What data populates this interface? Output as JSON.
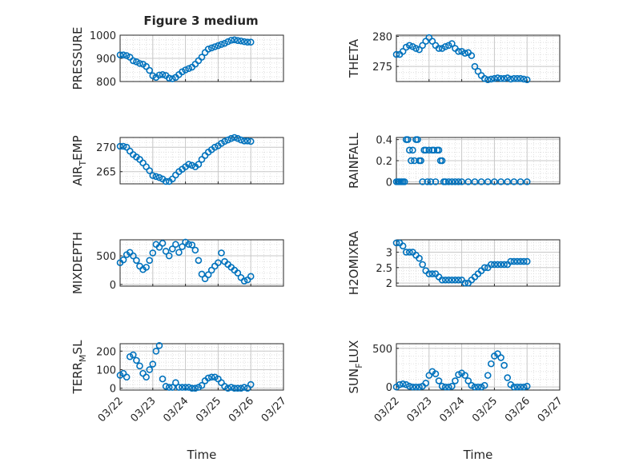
{
  "figure_title": "Figure 3 medium",
  "style": {
    "marker_color": "#0072BD",
    "axis_color": "#262626",
    "grid_color": "#d9d9d9"
  },
  "chart_data": [
    {
      "type": "scatter",
      "ylabel": "PRESSURE",
      "ylabel_sub": "",
      "ylabel_tail": "",
      "xlim": [
        "03/22",
        "03/27"
      ],
      "xticks": [
        "03/22",
        "03/23",
        "03/24",
        "03/25",
        "03/26",
        "03/27"
      ],
      "ylim": [
        800,
        1000
      ],
      "yticks": [
        800,
        900,
        1000
      ],
      "grid": true,
      "xlabel": "",
      "x": [
        0.0,
        0.1,
        0.2,
        0.3,
        0.4,
        0.5,
        0.6,
        0.7,
        0.8,
        0.9,
        1.0,
        1.1,
        1.2,
        1.3,
        1.4,
        1.5,
        1.6,
        1.7,
        1.8,
        1.9,
        2.0,
        2.1,
        2.2,
        2.3,
        2.4,
        2.5,
        2.6,
        2.7,
        2.8,
        2.9,
        3.0,
        3.1,
        3.2,
        3.3,
        3.4,
        3.5,
        3.6,
        3.7,
        3.8,
        3.9,
        4.0
      ],
      "y": [
        915,
        915,
        912,
        905,
        890,
        885,
        878,
        875,
        865,
        848,
        825,
        818,
        828,
        830,
        826,
        815,
        812,
        818,
        830,
        842,
        850,
        856,
        862,
        875,
        890,
        905,
        925,
        940,
        945,
        950,
        955,
        960,
        965,
        972,
        978,
        980,
        977,
        975,
        972,
        970,
        970
      ]
    },
    {
      "type": "scatter",
      "ylabel": "THETA",
      "ylabel_sub": "",
      "ylabel_tail": "",
      "xlim": [
        "03/22",
        "03/27"
      ],
      "xticks": [
        "03/22",
        "03/23",
        "03/24",
        "03/25",
        "03/26",
        "03/27"
      ],
      "ylim": [
        272.5,
        280.2
      ],
      "yticks": [
        275,
        280
      ],
      "grid": true,
      "xlabel": "",
      "x": [
        0.0,
        0.1,
        0.2,
        0.3,
        0.4,
        0.5,
        0.6,
        0.7,
        0.8,
        0.9,
        1.0,
        1.1,
        1.2,
        1.3,
        1.4,
        1.5,
        1.6,
        1.7,
        1.8,
        1.9,
        2.0,
        2.1,
        2.2,
        2.3,
        2.4,
        2.5,
        2.6,
        2.7,
        2.8,
        2.9,
        3.0,
        3.1,
        3.2,
        3.3,
        3.4,
        3.5,
        3.6,
        3.7,
        3.8,
        3.9,
        4.0
      ],
      "y": [
        277,
        277,
        277.5,
        278.2,
        278.5,
        278.3,
        278,
        277.8,
        278.5,
        279.2,
        279.8,
        279.2,
        278.5,
        278,
        278,
        278.3,
        278.5,
        278.8,
        278,
        277.5,
        277.5,
        277.2,
        277.3,
        276.8,
        275,
        274.2,
        273.5,
        273,
        272.8,
        272.9,
        273,
        273.1,
        273,
        273,
        273.1,
        272.9,
        273,
        273,
        273,
        272.9,
        272.8
      ]
    },
    {
      "type": "scatter",
      "ylabel": "AIR",
      "ylabel_sub": "T",
      "ylabel_tail": "EMP",
      "xlim": [
        "03/22",
        "03/27"
      ],
      "xticks": [
        "03/22",
        "03/23",
        "03/24",
        "03/25",
        "03/26",
        "03/27"
      ],
      "ylim": [
        262.5,
        272
      ],
      "yticks": [
        265,
        270
      ],
      "grid": true,
      "xlabel": "",
      "x": [
        0.0,
        0.1,
        0.2,
        0.3,
        0.4,
        0.5,
        0.6,
        0.7,
        0.8,
        0.9,
        1.0,
        1.1,
        1.2,
        1.3,
        1.4,
        1.5,
        1.6,
        1.7,
        1.8,
        1.9,
        2.0,
        2.1,
        2.2,
        2.3,
        2.4,
        2.5,
        2.6,
        2.7,
        2.8,
        2.9,
        3.0,
        3.1,
        3.2,
        3.3,
        3.4,
        3.5,
        3.6,
        3.7,
        3.8,
        3.9,
        4.0
      ],
      "y": [
        270.2,
        270.2,
        270,
        269.2,
        268.5,
        268,
        267.5,
        266.8,
        266,
        265.2,
        264.2,
        264,
        263.8,
        263.5,
        263,
        263,
        263.5,
        264.3,
        265,
        265.5,
        266,
        266.5,
        266.3,
        266,
        266.5,
        267.5,
        268.3,
        269,
        269.5,
        270,
        270.3,
        270.8,
        271.2,
        271.5,
        271.8,
        272,
        271.8,
        271.5,
        271.3,
        271.3,
        271.2
      ]
    },
    {
      "type": "scatter",
      "ylabel": "RAINFALL",
      "ylabel_sub": "",
      "ylabel_tail": "",
      "xlim": [
        "03/22",
        "03/27"
      ],
      "xticks": [
        "03/22",
        "03/23",
        "03/24",
        "03/25",
        "03/26",
        "03/27"
      ],
      "ylim": [
        -0.02,
        0.42
      ],
      "yticks": [
        0,
        0.2,
        0.4
      ],
      "grid": true,
      "xlabel": "",
      "x": [
        0.0,
        0.05,
        0.1,
        0.15,
        0.2,
        0.25,
        0.3,
        0.35,
        0.4,
        0.45,
        0.5,
        0.55,
        0.6,
        0.65,
        0.7,
        0.75,
        0.8,
        0.85,
        0.9,
        0.95,
        1.0,
        1.05,
        1.1,
        1.15,
        1.2,
        1.25,
        1.3,
        1.35,
        1.4,
        1.45,
        1.5,
        1.6,
        1.7,
        1.8,
        1.9,
        2.0,
        2.2,
        2.4,
        2.6,
        2.8,
        3.0,
        3.2,
        3.4,
        3.6,
        3.8,
        4.0
      ],
      "y": [
        0,
        0,
        0,
        0,
        0,
        0,
        0.4,
        0.4,
        0.3,
        0.2,
        0.3,
        0.2,
        0.4,
        0.4,
        0.2,
        0.2,
        0,
        0.3,
        0.3,
        0,
        0.3,
        0,
        0.3,
        0.3,
        0,
        0.3,
        0.3,
        0.2,
        0.2,
        0,
        0,
        0,
        0,
        0,
        0,
        0,
        0,
        0,
        0,
        0,
        0,
        0,
        0,
        0,
        0,
        0
      ]
    },
    {
      "type": "scatter",
      "ylabel": "MIXDEPTH",
      "ylabel_sub": "",
      "ylabel_tail": "",
      "xlim": [
        "03/22",
        "03/27"
      ],
      "xticks": [
        "03/22",
        "03/23",
        "03/24",
        "03/25",
        "03/26",
        "03/27"
      ],
      "ylim": [
        -30,
        780
      ],
      "yticks": [
        0,
        500
      ],
      "grid": true,
      "xlabel": "",
      "x": [
        0.0,
        0.1,
        0.2,
        0.3,
        0.4,
        0.5,
        0.6,
        0.7,
        0.8,
        0.9,
        1.0,
        1.1,
        1.2,
        1.3,
        1.4,
        1.5,
        1.6,
        1.7,
        1.8,
        1.9,
        2.0,
        2.1,
        2.2,
        2.3,
        2.4,
        2.5,
        2.6,
        2.7,
        2.8,
        2.9,
        3.0,
        3.1,
        3.2,
        3.3,
        3.4,
        3.5,
        3.6,
        3.7,
        3.8,
        3.9,
        4.0
      ],
      "y": [
        380,
        430,
        520,
        560,
        500,
        420,
        320,
        260,
        300,
        420,
        550,
        700,
        650,
        720,
        580,
        500,
        620,
        700,
        560,
        660,
        740,
        700,
        690,
        600,
        420,
        180,
        100,
        170,
        250,
        320,
        380,
        550,
        400,
        350,
        300,
        250,
        200,
        120,
        60,
        80,
        140
      ]
    },
    {
      "type": "scatter",
      "ylabel": "H2OMIXRA",
      "ylabel_sub": "",
      "ylabel_tail": "",
      "xlim": [
        "03/22",
        "03/27"
      ],
      "xticks": [
        "03/22",
        "03/23",
        "03/24",
        "03/25",
        "03/26",
        "03/27"
      ],
      "ylim": [
        1.9,
        3.4
      ],
      "yticks": [
        2,
        2.5,
        3
      ],
      "grid": true,
      "xlabel": "",
      "x": [
        0.0,
        0.1,
        0.2,
        0.3,
        0.4,
        0.5,
        0.6,
        0.7,
        0.8,
        0.9,
        1.0,
        1.1,
        1.2,
        1.3,
        1.4,
        1.5,
        1.6,
        1.7,
        1.8,
        1.9,
        2.0,
        2.1,
        2.2,
        2.3,
        2.4,
        2.5,
        2.6,
        2.7,
        2.8,
        2.9,
        3.0,
        3.1,
        3.2,
        3.3,
        3.4,
        3.5,
        3.6,
        3.7,
        3.8,
        3.9,
        4.0
      ],
      "y": [
        3.3,
        3.3,
        3.2,
        3.0,
        3.0,
        3.0,
        2.9,
        2.8,
        2.6,
        2.4,
        2.3,
        2.3,
        2.3,
        2.2,
        2.1,
        2.1,
        2.1,
        2.1,
        2.1,
        2.1,
        2.1,
        2.0,
        2.0,
        2.1,
        2.2,
        2.3,
        2.4,
        2.5,
        2.5,
        2.6,
        2.6,
        2.6,
        2.6,
        2.6,
        2.6,
        2.7,
        2.7,
        2.7,
        2.7,
        2.7,
        2.7
      ]
    },
    {
      "type": "scatter",
      "ylabel": "TERR",
      "ylabel_sub": "M",
      "ylabel_tail": "SL",
      "xlim": [
        "03/22",
        "03/27"
      ],
      "xticks": [
        "03/22",
        "03/23",
        "03/24",
        "03/25",
        "03/26",
        "03/27"
      ],
      "ylim": [
        -10,
        240
      ],
      "yticks": [
        0,
        100,
        200
      ],
      "grid": true,
      "xlabel": "Time",
      "x": [
        0.0,
        0.1,
        0.2,
        0.3,
        0.4,
        0.5,
        0.6,
        0.7,
        0.8,
        0.9,
        1.0,
        1.1,
        1.2,
        1.3,
        1.4,
        1.5,
        1.6,
        1.7,
        1.8,
        1.9,
        2.0,
        2.1,
        2.2,
        2.3,
        2.4,
        2.5,
        2.6,
        2.7,
        2.8,
        2.9,
        3.0,
        3.1,
        3.2,
        3.3,
        3.4,
        3.5,
        3.6,
        3.7,
        3.8,
        3.9,
        4.0
      ],
      "y": [
        70,
        80,
        60,
        170,
        180,
        150,
        120,
        80,
        60,
        100,
        130,
        200,
        230,
        50,
        10,
        5,
        5,
        30,
        5,
        5,
        5,
        5,
        0,
        0,
        5,
        15,
        40,
        55,
        60,
        60,
        50,
        30,
        10,
        0,
        5,
        0,
        0,
        0,
        5,
        0,
        20
      ]
    },
    {
      "type": "scatter",
      "ylabel": "SUN",
      "ylabel_sub": "F",
      "ylabel_tail": "LUX",
      "xlim": [
        "03/22",
        "03/27"
      ],
      "xticks": [
        "03/22",
        "03/23",
        "03/24",
        "03/25",
        "03/26",
        "03/27"
      ],
      "ylim": [
        -40,
        560
      ],
      "yticks": [
        0,
        500
      ],
      "grid": true,
      "xlabel": "Time",
      "x": [
        0.0,
        0.1,
        0.2,
        0.3,
        0.4,
        0.5,
        0.6,
        0.7,
        0.8,
        0.9,
        1.0,
        1.1,
        1.2,
        1.3,
        1.4,
        1.5,
        1.6,
        1.7,
        1.8,
        1.9,
        2.0,
        2.1,
        2.2,
        2.3,
        2.4,
        2.5,
        2.6,
        2.7,
        2.8,
        2.9,
        3.0,
        3.1,
        3.2,
        3.3,
        3.4,
        3.5,
        3.6,
        3.7,
        3.8,
        3.9,
        4.0
      ],
      "y": [
        0,
        30,
        40,
        30,
        10,
        0,
        0,
        0,
        10,
        50,
        150,
        200,
        170,
        80,
        10,
        0,
        0,
        10,
        80,
        160,
        180,
        150,
        80,
        20,
        0,
        0,
        0,
        20,
        150,
        300,
        400,
        430,
        380,
        280,
        120,
        30,
        0,
        0,
        0,
        0,
        10
      ]
    }
  ]
}
